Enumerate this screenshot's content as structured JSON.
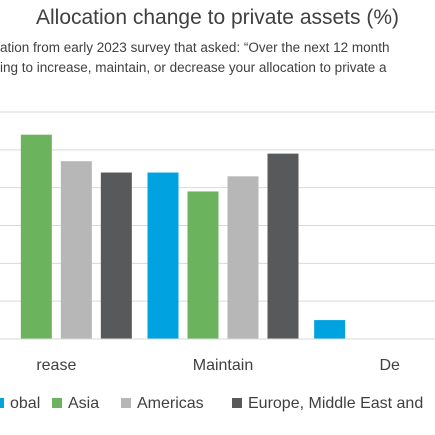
{
  "chart_data": {
    "type": "bar",
    "title": "Allocation change to private assets (%)",
    "subtitle_lines": [
      "ation from early 2023 survey that asked: “Over the next 12 month",
      "ing to increase, maintain, or decrease your allocation to private a"
    ],
    "categories": [
      "rease",
      "Maintain",
      "De"
    ],
    "series": [
      {
        "name": "obal",
        "color": "#00A3E0",
        "values": [
          null,
          44,
          5
        ]
      },
      {
        "name": "Asia",
        "color": "#6CB35E",
        "values": [
          54,
          39,
          null
        ]
      },
      {
        "name": "Americas",
        "color": "#B7B7B7",
        "values": [
          47,
          43,
          null
        ]
      },
      {
        "name": "Europe, Middle East and",
        "color": "#58595B",
        "values": [
          44,
          49,
          null
        ]
      }
    ],
    "ylim": [
      0,
      60
    ],
    "grid": true,
    "legend_position": "bottom"
  }
}
